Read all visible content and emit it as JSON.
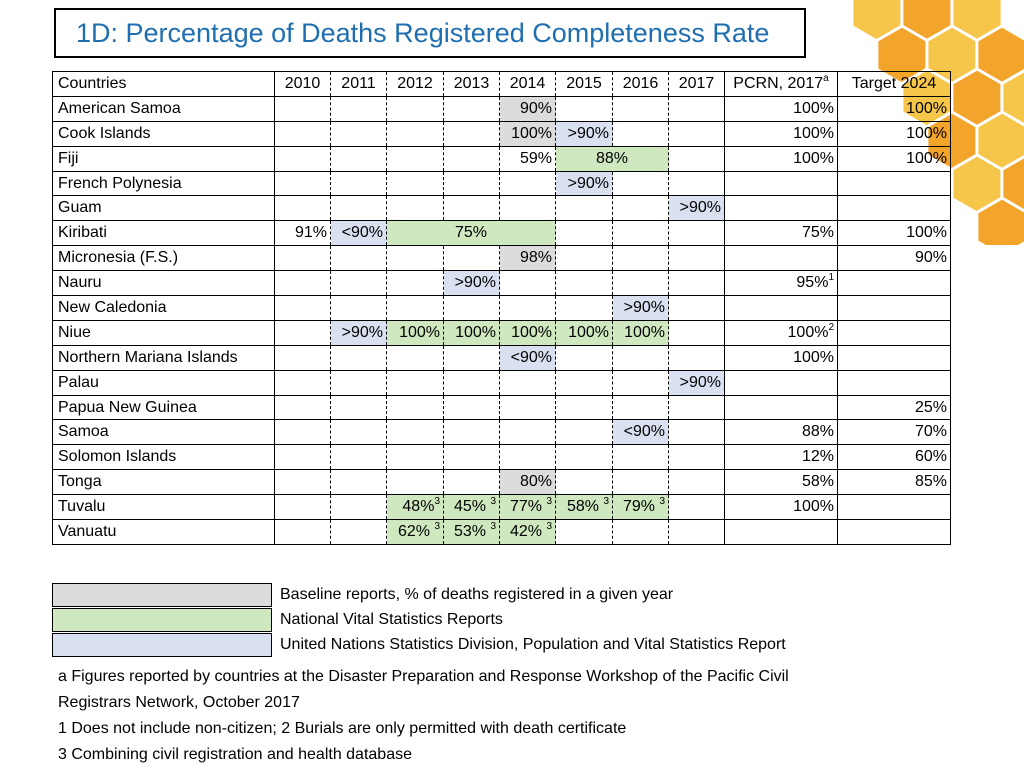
{
  "title": "1D: Percentage of Deaths Registered Completeness Rate",
  "colors": {
    "title": "#1f6fb0",
    "baseline": "#dcdcdc",
    "national": "#cfe8bf",
    "unsd": "#d9e0ef",
    "hex_light": "#f6c64a",
    "hex_dark": "#f2a42b"
  },
  "table": {
    "headers": {
      "country": "Countries",
      "years": [
        "2010",
        "2011",
        "2012",
        "2013",
        "2014",
        "2015",
        "2016",
        "2017"
      ],
      "pcrn": "PCRN, 2017",
      "pcrn_sup": "a",
      "target": "Target 2024"
    },
    "rows": [
      {
        "country": "American Samoa",
        "cells": [
          {
            "col": 4,
            "text": "90%",
            "bg": "gy"
          }
        ],
        "pcrn": "100%",
        "target": "100%"
      },
      {
        "country": "Cook Islands",
        "cells": [
          {
            "col": 4,
            "text": "100%",
            "bg": "gy"
          },
          {
            "col": 5,
            "text": ">90%",
            "bg": "bl"
          }
        ],
        "pcrn": "100%",
        "target": "100%"
      },
      {
        "country": "Fiji",
        "cells": [
          {
            "col": 4,
            "text": "59%"
          },
          {
            "col": 5,
            "span": 2,
            "text": "88%",
            "bg": "gr",
            "center": true
          }
        ],
        "pcrn": "100%",
        "target": "100%"
      },
      {
        "country": "French Polynesia",
        "cells": [
          {
            "col": 5,
            "text": ">90%",
            "bg": "bl"
          }
        ],
        "pcrn": "",
        "target": ""
      },
      {
        "country": "Guam",
        "cells": [
          {
            "col": 7,
            "text": ">90%",
            "bg": "bl"
          }
        ],
        "pcrn": "",
        "target": ""
      },
      {
        "country": "Kiribati",
        "cells": [
          {
            "col": 0,
            "text": "91%"
          },
          {
            "col": 1,
            "text": "<90%",
            "bg": "bl"
          },
          {
            "col": 2,
            "span": 3,
            "text": "75%",
            "bg": "gr",
            "center": true
          }
        ],
        "pcrn": "75%",
        "target": "100%"
      },
      {
        "country": "Micronesia (F.S.)",
        "cells": [
          {
            "col": 4,
            "text": "98%",
            "bg": "gy"
          }
        ],
        "pcrn": "",
        "target": "90%"
      },
      {
        "country": "Nauru",
        "cells": [
          {
            "col": 3,
            "text": ">90%",
            "bg": "bl"
          }
        ],
        "pcrn": "95%",
        "pcrn_sup": "1",
        "target": ""
      },
      {
        "country": "New Caledonia",
        "cells": [
          {
            "col": 6,
            "text": ">90%",
            "bg": "bl"
          }
        ],
        "pcrn": "",
        "target": ""
      },
      {
        "country": "Niue",
        "cells": [
          {
            "col": 1,
            "text": ">90%",
            "bg": "bl"
          },
          {
            "col": 2,
            "text": "100%",
            "bg": "gr"
          },
          {
            "col": 3,
            "text": "100%",
            "bg": "gr"
          },
          {
            "col": 4,
            "text": "100%",
            "bg": "gr"
          },
          {
            "col": 5,
            "text": "100%",
            "bg": "gr"
          },
          {
            "col": 6,
            "text": "100%",
            "bg": "gr"
          }
        ],
        "pcrn": "100%",
        "pcrn_sup": "2",
        "target": ""
      },
      {
        "country": "Northern Mariana Islands",
        "cells": [
          {
            "col": 4,
            "text": "<90%",
            "bg": "bl"
          }
        ],
        "pcrn": "100%",
        "target": ""
      },
      {
        "country": "Palau",
        "cells": [
          {
            "col": 7,
            "text": ">90%",
            "bg": "bl"
          }
        ],
        "pcrn": "",
        "target": ""
      },
      {
        "country": "Papua New Guinea",
        "cells": [],
        "pcrn": "",
        "target": "25%"
      },
      {
        "country": "Samoa",
        "cells": [
          {
            "col": 6,
            "text": "<90%",
            "bg": "bl"
          }
        ],
        "pcrn": "88%",
        "target": "70%"
      },
      {
        "country": "Solomon Islands",
        "cells": [],
        "pcrn": "12%",
        "target": "60%"
      },
      {
        "country": "Tonga",
        "cells": [
          {
            "col": 4,
            "text": "80%",
            "bg": "gy"
          }
        ],
        "pcrn": "58%",
        "target": "85%"
      },
      {
        "country": "Tuvalu",
        "cells": [
          {
            "col": 2,
            "text": "48%",
            "sup": "3",
            "bg": "gr"
          },
          {
            "col": 3,
            "text": "45% ",
            "sup": "3",
            "bg": "gr"
          },
          {
            "col": 4,
            "text": "77% ",
            "sup": "3",
            "bg": "gr"
          },
          {
            "col": 5,
            "text": "58% ",
            "sup": "3",
            "bg": "gr"
          },
          {
            "col": 6,
            "text": "79% ",
            "sup": "3",
            "bg": "gr"
          }
        ],
        "pcrn": "100%",
        "target": ""
      },
      {
        "country": "Vanuatu",
        "cells": [
          {
            "col": 2,
            "text": "62% ",
            "sup": "3",
            "bg": "gr"
          },
          {
            "col": 3,
            "text": "53% ",
            "sup": "3",
            "bg": "gr"
          },
          {
            "col": 4,
            "text": "42% ",
            "sup": "3",
            "bg": "gr"
          }
        ],
        "pcrn": "",
        "target": ""
      }
    ]
  },
  "legend": [
    {
      "key": "gy",
      "label": "Baseline reports, % of deaths registered in a given year"
    },
    {
      "key": "gr",
      "label": "National Vital Statistics Reports"
    },
    {
      "key": "bl",
      "label": "United Nations Statistics Division, Population and Vital Statistics Report"
    }
  ],
  "notes": [
    "a Figures reported by countries at the Disaster Preparation and Response Workshop of the Pacific Civil",
    "Registrars Network, October 2017",
    "1 Does not include non-citizen; 2 Burials are only permitted with death certificate",
    "3 Combining civil registration and health database"
  ]
}
